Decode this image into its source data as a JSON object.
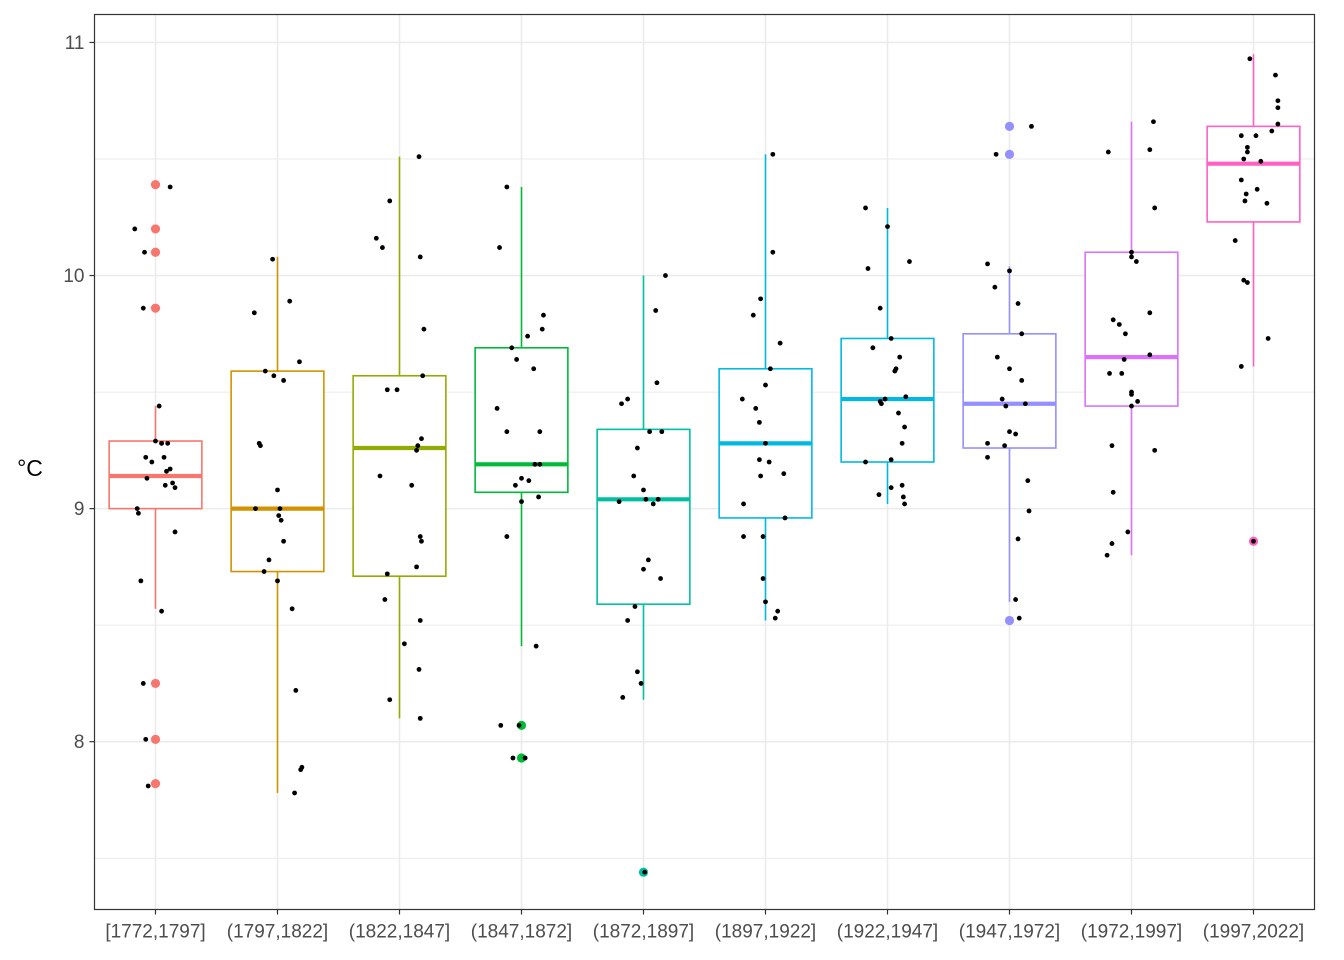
{
  "chart_data": {
    "type": "boxplot",
    "title": "",
    "xlabel": "",
    "ylabel": "°C",
    "ylim": [
      7.28,
      11.12
    ],
    "y_ticks": [
      8,
      9,
      10,
      11
    ],
    "grid": true,
    "legend": "none",
    "categories": [
      "[1772,1797]",
      "(1797,1822]",
      "(1822,1847]",
      "(1847,1872]",
      "(1872,1897]",
      "(1897,1922]",
      "(1922,1947]",
      "(1947,1972]",
      "(1972,1997]",
      "(1997,2022]"
    ],
    "colors": [
      "#F8766D",
      "#D39200",
      "#93AA00",
      "#00BA38",
      "#00C19F",
      "#00B9E3",
      "#00B9E3",
      "#9590FF",
      "#DB72FB",
      "#FF61C3"
    ],
    "boxes": [
      {
        "q1": 9.0,
        "median": 9.14,
        "q3": 9.29,
        "whisker_low": 8.57,
        "whisker_high": 9.44,
        "outliers": [
          10.39,
          10.2,
          10.1,
          9.86,
          8.25,
          8.01,
          7.82
        ]
      },
      {
        "q1": 8.73,
        "median": 9.0,
        "q3": 9.59,
        "whisker_low": 7.78,
        "whisker_high": 10.08,
        "outliers": []
      },
      {
        "q1": 8.71,
        "median": 9.26,
        "q3": 9.57,
        "whisker_low": 8.1,
        "whisker_high": 10.51,
        "outliers": []
      },
      {
        "q1": 9.07,
        "median": 9.19,
        "q3": 9.69,
        "whisker_low": 8.41,
        "whisker_high": 10.38,
        "outliers": [
          8.07,
          7.93
        ]
      },
      {
        "q1": 8.59,
        "median": 9.04,
        "q3": 9.34,
        "whisker_low": 8.18,
        "whisker_high": 10.0,
        "outliers": [
          7.44
        ]
      },
      {
        "q1": 8.96,
        "median": 9.28,
        "q3": 9.6,
        "whisker_low": 8.52,
        "whisker_high": 10.52,
        "outliers": []
      },
      {
        "q1": 9.2,
        "median": 9.47,
        "q3": 9.73,
        "whisker_low": 9.02,
        "whisker_high": 10.29,
        "outliers": []
      },
      {
        "q1": 9.26,
        "median": 9.45,
        "q3": 9.75,
        "whisker_low": 8.6,
        "whisker_high": 10.04,
        "outliers": [
          10.64,
          10.52,
          8.52
        ]
      },
      {
        "q1": 9.44,
        "median": 9.65,
        "q3": 10.1,
        "whisker_low": 8.8,
        "whisker_high": 10.66,
        "outliers": []
      },
      {
        "q1": 10.23,
        "median": 10.48,
        "q3": 10.64,
        "whisker_low": 9.61,
        "whisker_high": 10.95,
        "outliers": [
          8.86
        ]
      }
    ],
    "points": [
      [
        [
          -0.15,
          9.0
        ],
        [
          0.12,
          9.17
        ],
        [
          -0.08,
          9.22
        ],
        [
          0.05,
          9.28
        ],
        [
          -0.1,
          9.86
        ],
        [
          -0.17,
          10.2
        ],
        [
          0.12,
          10.38
        ],
        [
          0.1,
          9.28
        ],
        [
          -0.07,
          9.13
        ],
        [
          0.08,
          9.1
        ],
        [
          0.16,
          9.09
        ],
        [
          -0.12,
          8.69
        ],
        [
          0.05,
          8.56
        ],
        [
          -0.1,
          8.25
        ],
        [
          -0.08,
          8.01
        ],
        [
          -0.06,
          7.81
        ],
        [
          0.16,
          8.9
        ],
        [
          0.03,
          9.44
        ],
        [
          -0.09,
          10.1
        ],
        [
          0.0,
          9.29
        ],
        [
          0.09,
          9.16
        ],
        [
          0.14,
          9.11
        ],
        [
          -0.03,
          9.2
        ],
        [
          0.07,
          9.22
        ],
        [
          -0.14,
          8.98
        ],
        [
          0.05,
          9.28
        ]
      ],
      [
        [
          -0.19,
          9.84
        ],
        [
          -0.04,
          10.07
        ],
        [
          0.1,
          9.89
        ],
        [
          0.18,
          9.63
        ],
        [
          -0.14,
          9.27
        ],
        [
          0.02,
          9.0
        ],
        [
          -0.18,
          9.0
        ],
        [
          -0.11,
          8.73
        ],
        [
          0.01,
          8.97
        ],
        [
          0.05,
          8.86
        ],
        [
          0.12,
          8.57
        ],
        [
          0.15,
          8.22
        ],
        [
          0.14,
          7.78
        ],
        [
          0.19,
          7.88
        ],
        [
          0.2,
          7.89
        ],
        [
          -0.1,
          9.59
        ],
        [
          -0.03,
          9.57
        ],
        [
          0.05,
          9.55
        ],
        [
          -0.07,
          8.78
        ],
        [
          0.0,
          8.69
        ],
        [
          0.03,
          8.95
        ],
        [
          -0.15,
          9.28
        ],
        [
          0.0,
          9.08
        ]
      ],
      [
        [
          -0.19,
          10.16
        ],
        [
          -0.08,
          10.32
        ],
        [
          0.16,
          10.51
        ],
        [
          0.17,
          10.08
        ],
        [
          0.2,
          9.77
        ],
        [
          -0.1,
          9.51
        ],
        [
          -0.16,
          9.14
        ],
        [
          -0.02,
          9.51
        ],
        [
          0.19,
          9.57
        ],
        [
          0.15,
          9.27
        ],
        [
          0.18,
          9.3
        ],
        [
          0.1,
          9.1
        ],
        [
          0.17,
          8.88
        ],
        [
          0.14,
          8.75
        ],
        [
          -0.1,
          8.72
        ],
        [
          -0.12,
          8.61
        ],
        [
          0.04,
          8.42
        ],
        [
          0.17,
          8.52
        ],
        [
          0.16,
          8.31
        ],
        [
          -0.08,
          8.18
        ],
        [
          0.17,
          8.1
        ],
        [
          -0.14,
          10.12
        ],
        [
          0.14,
          9.25
        ],
        [
          0.18,
          8.86
        ]
      ],
      [
        [
          -0.18,
          10.12
        ],
        [
          -0.12,
          10.38
        ],
        [
          -0.08,
          9.69
        ],
        [
          -0.04,
          9.64
        ],
        [
          0.1,
          9.6
        ],
        [
          0.17,
          9.77
        ],
        [
          0.18,
          9.83
        ],
        [
          0.15,
          9.33
        ],
        [
          -0.12,
          9.33
        ],
        [
          -0.2,
          9.43
        ],
        [
          0.11,
          9.19
        ],
        [
          0.15,
          9.19
        ],
        [
          0.06,
          9.12
        ],
        [
          -0.05,
          9.1
        ],
        [
          0.0,
          9.03
        ],
        [
          0.14,
          9.05
        ],
        [
          -0.12,
          8.88
        ],
        [
          0.12,
          8.41
        ],
        [
          -0.02,
          8.07
        ],
        [
          0.03,
          7.93
        ],
        [
          -0.07,
          7.93
        ],
        [
          -0.17,
          8.07
        ],
        [
          0.05,
          9.74
        ],
        [
          0.0,
          9.13
        ]
      ],
      [
        [
          -0.18,
          9.45
        ],
        [
          -0.13,
          9.47
        ],
        [
          0.11,
          9.54
        ],
        [
          0.18,
          10.0
        ],
        [
          0.1,
          9.85
        ],
        [
          -0.05,
          9.26
        ],
        [
          0.15,
          9.33
        ],
        [
          0.05,
          9.33
        ],
        [
          -0.2,
          9.03
        ],
        [
          0.12,
          9.04
        ],
        [
          0.02,
          9.04
        ],
        [
          -0.08,
          9.14
        ],
        [
          0.0,
          9.08
        ],
        [
          0.04,
          8.78
        ],
        [
          0.14,
          8.7
        ],
        [
          0.0,
          8.74
        ],
        [
          -0.07,
          8.58
        ],
        [
          -0.13,
          8.52
        ],
        [
          -0.05,
          8.3
        ],
        [
          -0.02,
          8.25
        ],
        [
          -0.17,
          8.19
        ],
        [
          0.01,
          7.44
        ],
        [
          0.08,
          9.02
        ]
      ],
      [
        [
          -0.19,
          9.47
        ],
        [
          -0.1,
          9.83
        ],
        [
          -0.04,
          9.9
        ],
        [
          0.06,
          10.52
        ],
        [
          0.06,
          10.1
        ],
        [
          0.04,
          9.6
        ],
        [
          0.12,
          9.71
        ],
        [
          0.0,
          9.53
        ],
        [
          -0.08,
          9.43
        ],
        [
          -0.05,
          9.37
        ],
        [
          0.0,
          9.28
        ],
        [
          -0.05,
          9.21
        ],
        [
          0.03,
          9.2
        ],
        [
          -0.04,
          9.14
        ],
        [
          0.15,
          9.15
        ],
        [
          -0.18,
          9.02
        ],
        [
          0.16,
          8.96
        ],
        [
          -0.02,
          8.88
        ],
        [
          -0.18,
          8.88
        ],
        [
          -0.02,
          8.7
        ],
        [
          0.0,
          8.6
        ],
        [
          0.1,
          8.56
        ],
        [
          0.08,
          8.53
        ]
      ],
      [
        [
          -0.18,
          10.29
        ],
        [
          -0.16,
          10.03
        ],
        [
          -0.06,
          9.86
        ],
        [
          0.0,
          10.21
        ],
        [
          0.18,
          10.06
        ],
        [
          -0.12,
          9.69
        ],
        [
          0.03,
          9.73
        ],
        [
          -0.06,
          9.46
        ],
        [
          0.1,
          9.65
        ],
        [
          0.06,
          9.59
        ],
        [
          0.09,
          9.41
        ],
        [
          0.14,
          9.35
        ],
        [
          0.12,
          9.28
        ],
        [
          -0.05,
          9.45
        ],
        [
          -0.18,
          9.2
        ],
        [
          0.03,
          9.21
        ],
        [
          -0.07,
          9.06
        ],
        [
          0.03,
          9.09
        ],
        [
          0.12,
          9.1
        ],
        [
          0.13,
          9.05
        ],
        [
          0.14,
          9.02
        ],
        [
          0.07,
          9.6
        ],
        [
          -0.02,
          9.47
        ],
        [
          0.15,
          9.48
        ]
      ],
      [
        [
          -0.18,
          10.05
        ],
        [
          -0.12,
          9.95
        ],
        [
          0.0,
          10.02
        ],
        [
          0.07,
          9.88
        ],
        [
          0.18,
          10.64
        ],
        [
          0.1,
          9.75
        ],
        [
          0.1,
          9.55
        ],
        [
          -0.1,
          9.65
        ],
        [
          0.0,
          9.6
        ],
        [
          -0.06,
          9.47
        ],
        [
          -0.03,
          9.44
        ],
        [
          -0.18,
          9.28
        ],
        [
          0.13,
          9.45
        ],
        [
          -0.04,
          9.27
        ],
        [
          0.0,
          9.33
        ],
        [
          0.05,
          9.32
        ],
        [
          -0.18,
          9.22
        ],
        [
          0.15,
          9.12
        ],
        [
          0.16,
          8.99
        ],
        [
          0.07,
          8.87
        ],
        [
          0.05,
          8.61
        ],
        [
          0.08,
          8.53
        ],
        [
          -0.11,
          10.52
        ]
      ],
      [
        [
          -0.19,
          10.53
        ],
        [
          0.15,
          10.54
        ],
        [
          0.18,
          10.66
        ],
        [
          0.19,
          10.29
        ],
        [
          0.0,
          10.1
        ],
        [
          0.0,
          10.08
        ],
        [
          0.04,
          10.06
        ],
        [
          -0.15,
          9.81
        ],
        [
          -0.1,
          9.79
        ],
        [
          -0.05,
          9.75
        ],
        [
          0.15,
          9.84
        ],
        [
          0.15,
          9.66
        ],
        [
          -0.08,
          9.58
        ],
        [
          -0.18,
          9.58
        ],
        [
          0.0,
          9.5
        ],
        [
          0.0,
          9.49
        ],
        [
          0.05,
          9.46
        ],
        [
          0.0,
          9.44
        ],
        [
          0.19,
          9.25
        ],
        [
          -0.16,
          9.27
        ],
        [
          -0.15,
          9.07
        ],
        [
          -0.03,
          8.9
        ],
        [
          -0.16,
          8.85
        ],
        [
          -0.2,
          8.8
        ],
        [
          -0.06,
          9.64
        ]
      ],
      [
        [
          -0.03,
          10.93
        ],
        [
          0.18,
          10.86
        ],
        [
          0.2,
          10.75
        ],
        [
          0.2,
          10.72
        ],
        [
          0.2,
          10.65
        ],
        [
          -0.1,
          10.6
        ],
        [
          0.02,
          10.6
        ],
        [
          0.15,
          10.62
        ],
        [
          -0.05,
          10.55
        ],
        [
          -0.05,
          10.53
        ],
        [
          -0.08,
          10.5
        ],
        [
          0.06,
          10.49
        ],
        [
          -0.1,
          10.41
        ],
        [
          0.11,
          10.31
        ],
        [
          -0.06,
          10.35
        ],
        [
          -0.07,
          10.32
        ],
        [
          0.03,
          10.37
        ],
        [
          -0.15,
          10.15
        ],
        [
          -0.05,
          9.97
        ],
        [
          -0.08,
          9.98
        ],
        [
          0.12,
          9.73
        ],
        [
          -0.1,
          9.61
        ],
        [
          0.0,
          8.86
        ]
      ]
    ]
  }
}
